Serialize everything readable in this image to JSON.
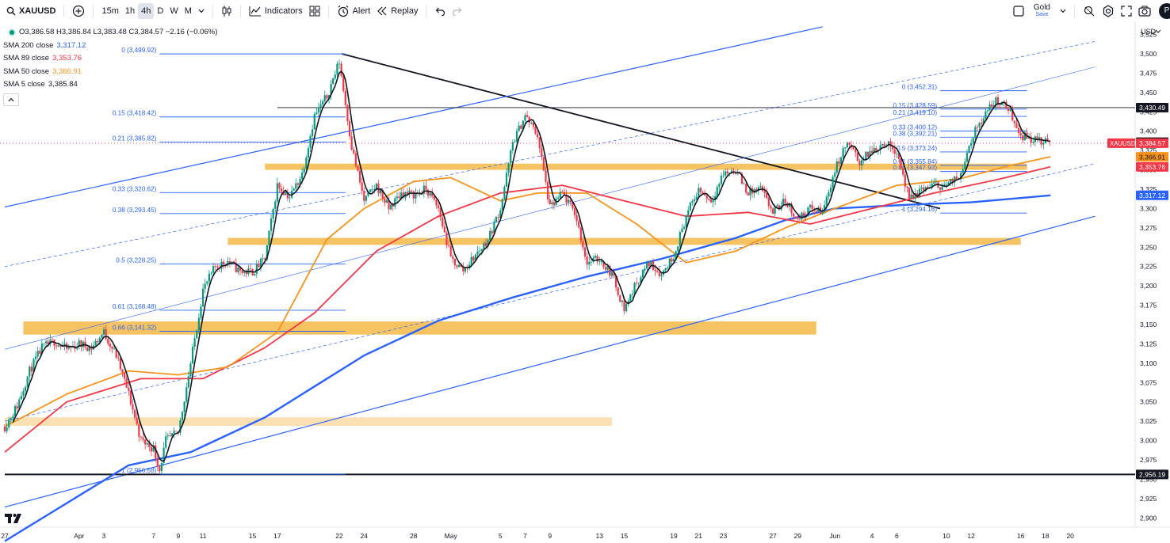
{
  "toolbar": {
    "symbol": "XAUUSD",
    "timeframes": [
      "15m",
      "1h",
      "4h",
      "D",
      "W",
      "M"
    ],
    "active_timeframe": "4h",
    "indicators_label": "Indicators",
    "alert_label": "Alert",
    "replay_label": "Replay",
    "layout_name": "Gold",
    "layout_status": "Save",
    "avatar_letter": "P",
    "icons": [
      "search-icon",
      "add-symbol-icon",
      "chevron-down-icon",
      "candles-icon",
      "indicators-icon",
      "templates-icon",
      "alert-icon",
      "replay-icon",
      "undo-icon",
      "redo-icon",
      "square-icon",
      "search-chart-icon",
      "settings-icon",
      "fullscreen-icon",
      "camera-icon"
    ]
  },
  "legend": {
    "ohlc": "O3,386.58 H3,386.84 L3,383.48 C3,384.57 −2.16 (−0.06%)",
    "sma": [
      {
        "label": "SMA 200 close",
        "value": "3,317.12",
        "color": "#2962ff"
      },
      {
        "label": "SMA 89 close",
        "value": "3,353.76",
        "color": "#f23645"
      },
      {
        "label": "SMA 50 close",
        "value": "3,366.91",
        "color": "#f7931a"
      },
      {
        "label": "SMA 5 close",
        "value": "3,385.84",
        "color": "#131722"
      }
    ]
  },
  "chart_data": {
    "type": "candlestick",
    "symbol": "XAUUSD",
    "interval": "4h",
    "currency": "USD",
    "ylim": [
      2888,
      3542
    ],
    "y_ticks": [
      2900,
      2925,
      2950,
      2975,
      3000,
      3025,
      3050,
      3075,
      3100,
      3125,
      3150,
      3175,
      3200,
      3225,
      3250,
      3275,
      3300,
      3325,
      3350,
      3375,
      3400,
      3425,
      3450,
      3475,
      3500,
      3525
    ],
    "x_ticks": [
      {
        "label": "27",
        "day": -5
      },
      {
        "label": "Apr",
        "day": 1
      },
      {
        "label": "3",
        "day": 3
      },
      {
        "label": "7",
        "day": 7
      },
      {
        "label": "9",
        "day": 9
      },
      {
        "label": "11",
        "day": 11
      },
      {
        "label": "15",
        "day": 15
      },
      {
        "label": "17",
        "day": 17
      },
      {
        "label": "22",
        "day": 22
      },
      {
        "label": "24",
        "day": 24
      },
      {
        "label": "28",
        "day": 28
      },
      {
        "label": "May",
        "day": 31
      },
      {
        "label": "5",
        "day": 35
      },
      {
        "label": "7",
        "day": 37
      },
      {
        "label": "9",
        "day": 39
      },
      {
        "label": "13",
        "day": 43
      },
      {
        "label": "15",
        "day": 45
      },
      {
        "label": "19",
        "day": 49
      },
      {
        "label": "21",
        "day": 51
      },
      {
        "label": "23",
        "day": 53
      },
      {
        "label": "27",
        "day": 57
      },
      {
        "label": "29",
        "day": 59
      },
      {
        "label": "Jun",
        "day": 62
      },
      {
        "label": "4",
        "day": 65
      },
      {
        "label": "6",
        "day": 67
      },
      {
        "label": "10",
        "day": 71
      },
      {
        "label": "12",
        "day": 73
      },
      {
        "label": "16",
        "day": 77
      },
      {
        "label": "18",
        "day": 79
      },
      {
        "label": "20",
        "day": 81
      }
    ],
    "price_path": [
      {
        "day": -5,
        "price": 3018
      },
      {
        "day": -4,
        "price": 3045
      },
      {
        "day": -3,
        "price": 3090
      },
      {
        "day": -2,
        "price": 3120
      },
      {
        "day": -1,
        "price": 3128
      },
      {
        "day": 0,
        "price": 3118
      },
      {
        "day": 1,
        "price": 3125
      },
      {
        "day": 2,
        "price": 3120
      },
      {
        "day": 3,
        "price": 3140
      },
      {
        "day": 4,
        "price": 3110
      },
      {
        "day": 5,
        "price": 3060
      },
      {
        "day": 6,
        "price": 3000
      },
      {
        "day": 7,
        "price": 2990
      },
      {
        "day": 7.5,
        "price": 2962
      },
      {
        "day": 8,
        "price": 3000
      },
      {
        "day": 9,
        "price": 3010
      },
      {
        "day": 10,
        "price": 3100
      },
      {
        "day": 11,
        "price": 3195
      },
      {
        "day": 12,
        "price": 3225
      },
      {
        "day": 13,
        "price": 3232
      },
      {
        "day": 14,
        "price": 3218
      },
      {
        "day": 15,
        "price": 3218
      },
      {
        "day": 16,
        "price": 3235
      },
      {
        "day": 17,
        "price": 3330
      },
      {
        "day": 18,
        "price": 3315
      },
      {
        "day": 19,
        "price": 3345
      },
      {
        "day": 20,
        "price": 3420
      },
      {
        "day": 21,
        "price": 3445
      },
      {
        "day": 22,
        "price": 3490
      },
      {
        "day": 23,
        "price": 3380
      },
      {
        "day": 24,
        "price": 3310
      },
      {
        "day": 25,
        "price": 3330
      },
      {
        "day": 26,
        "price": 3300
      },
      {
        "day": 27,
        "price": 3320
      },
      {
        "day": 28,
        "price": 3318
      },
      {
        "day": 29,
        "price": 3325
      },
      {
        "day": 30,
        "price": 3300
      },
      {
        "day": 31,
        "price": 3235
      },
      {
        "day": 32,
        "price": 3220
      },
      {
        "day": 33,
        "price": 3240
      },
      {
        "day": 34,
        "price": 3260
      },
      {
        "day": 35,
        "price": 3300
      },
      {
        "day": 36,
        "price": 3385
      },
      {
        "day": 37,
        "price": 3420
      },
      {
        "day": 38,
        "price": 3395
      },
      {
        "day": 39,
        "price": 3300
      },
      {
        "day": 40,
        "price": 3320
      },
      {
        "day": 41,
        "price": 3295
      },
      {
        "day": 42,
        "price": 3230
      },
      {
        "day": 43,
        "price": 3235
      },
      {
        "day": 44,
        "price": 3215
      },
      {
        "day": 45,
        "price": 3170
      },
      {
        "day": 46,
        "price": 3205
      },
      {
        "day": 47,
        "price": 3230
      },
      {
        "day": 48,
        "price": 3215
      },
      {
        "day": 49,
        "price": 3240
      },
      {
        "day": 50,
        "price": 3290
      },
      {
        "day": 51,
        "price": 3325
      },
      {
        "day": 52,
        "price": 3310
      },
      {
        "day": 53,
        "price": 3345
      },
      {
        "day": 54,
        "price": 3350
      },
      {
        "day": 55,
        "price": 3320
      },
      {
        "day": 56,
        "price": 3325
      },
      {
        "day": 57,
        "price": 3295
      },
      {
        "day": 58,
        "price": 3310
      },
      {
        "day": 59,
        "price": 3285
      },
      {
        "day": 60,
        "price": 3300
      },
      {
        "day": 61,
        "price": 3295
      },
      {
        "day": 62,
        "price": 3350
      },
      {
        "day": 63,
        "price": 3385
      },
      {
        "day": 64,
        "price": 3360
      },
      {
        "day": 65,
        "price": 3375
      },
      {
        "day": 66,
        "price": 3385
      },
      {
        "day": 67,
        "price": 3375
      },
      {
        "day": 68,
        "price": 3310
      },
      {
        "day": 69,
        "price": 3325
      },
      {
        "day": 70,
        "price": 3330
      },
      {
        "day": 71,
        "price": 3330
      },
      {
        "day": 72,
        "price": 3340
      },
      {
        "day": 73,
        "price": 3390
      },
      {
        "day": 74,
        "price": 3420
      },
      {
        "day": 75,
        "price": 3440
      },
      {
        "day": 76,
        "price": 3430
      },
      {
        "day": 77,
        "price": 3395
      },
      {
        "day": 78,
        "price": 3390
      },
      {
        "day": 79,
        "price": 3385
      },
      {
        "day": 79.4,
        "price": 3385
      }
    ],
    "sma": [
      {
        "name": "SMA 200 close",
        "color": "#2962ff",
        "width": 2.4,
        "points": [
          {
            "day": -5,
            "price": 2870
          },
          {
            "day": 5,
            "price": 2968
          },
          {
            "day": 10,
            "price": 2985
          },
          {
            "day": 16,
            "price": 3030
          },
          {
            "day": 20,
            "price": 3070
          },
          {
            "day": 24,
            "price": 3110
          },
          {
            "day": 30,
            "price": 3155
          },
          {
            "day": 36,
            "price": 3185
          },
          {
            "day": 42,
            "price": 3212
          },
          {
            "day": 48,
            "price": 3235
          },
          {
            "day": 54,
            "price": 3262
          },
          {
            "day": 58,
            "price": 3285
          },
          {
            "day": 62,
            "price": 3300
          },
          {
            "day": 68,
            "price": 3305
          },
          {
            "day": 73,
            "price": 3308
          },
          {
            "day": 79.4,
            "price": 3317
          }
        ]
      },
      {
        "name": "SMA 89 close",
        "color": "#f23645",
        "width": 1.8,
        "points": [
          {
            "day": -5,
            "price": 2985
          },
          {
            "day": 0,
            "price": 3050
          },
          {
            "day": 6,
            "price": 3080
          },
          {
            "day": 11,
            "price": 3080
          },
          {
            "day": 16,
            "price": 3120
          },
          {
            "day": 20,
            "price": 3165
          },
          {
            "day": 25,
            "price": 3245
          },
          {
            "day": 30,
            "price": 3290
          },
          {
            "day": 35,
            "price": 3320
          },
          {
            "day": 40,
            "price": 3330
          },
          {
            "day": 45,
            "price": 3310
          },
          {
            "day": 50,
            "price": 3290
          },
          {
            "day": 55,
            "price": 3295
          },
          {
            "day": 60,
            "price": 3280
          },
          {
            "day": 65,
            "price": 3300
          },
          {
            "day": 70,
            "price": 3320
          },
          {
            "day": 75,
            "price": 3337
          },
          {
            "day": 79.4,
            "price": 3354
          }
        ]
      },
      {
        "name": "SMA 50 close",
        "color": "#f7931a",
        "width": 1.8,
        "points": [
          {
            "day": -5,
            "price": 3018
          },
          {
            "day": 0,
            "price": 3060
          },
          {
            "day": 5,
            "price": 3090
          },
          {
            "day": 9,
            "price": 3085
          },
          {
            "day": 13,
            "price": 3095
          },
          {
            "day": 17,
            "price": 3140
          },
          {
            "day": 21,
            "price": 3260
          },
          {
            "day": 24,
            "price": 3300
          },
          {
            "day": 28,
            "price": 3335
          },
          {
            "day": 31,
            "price": 3340
          },
          {
            "day": 35,
            "price": 3310
          },
          {
            "day": 38,
            "price": 3320
          },
          {
            "day": 42,
            "price": 3320
          },
          {
            "day": 46,
            "price": 3280
          },
          {
            "day": 50,
            "price": 3230
          },
          {
            "day": 54,
            "price": 3245
          },
          {
            "day": 58,
            "price": 3275
          },
          {
            "day": 62,
            "price": 3300
          },
          {
            "day": 67,
            "price": 3330
          },
          {
            "day": 72,
            "price": 3338
          },
          {
            "day": 76,
            "price": 3355
          },
          {
            "day": 79.4,
            "price": 3367
          }
        ]
      }
    ],
    "fib_left": {
      "start_day": 7.5,
      "end_day": 22.5,
      "levels": [
        {
          "ratio": "0",
          "price": 3499.92,
          "label": "0 (3,499.92)"
        },
        {
          "ratio": "0.15",
          "price": 3418.42,
          "label": "0.15 (3,418.42)"
        },
        {
          "ratio": "0.21",
          "price": 3385.82,
          "label": "0.21 (3,385.82)"
        },
        {
          "ratio": "0.33",
          "price": 3320.62,
          "label": "0.33 (3,320.62)"
        },
        {
          "ratio": "0.38",
          "price": 3293.45,
          "label": "0.38 (3,293.45)"
        },
        {
          "ratio": "0.5",
          "price": 3228.25,
          "label": "0.5 (3,228.25)"
        },
        {
          "ratio": "0.61",
          "price": 3168.48,
          "label": "0.61 (3,168.48)"
        },
        {
          "ratio": "0.66",
          "price": 3141.32,
          "label": "0.66 (3,141.32)"
        },
        {
          "ratio": "1",
          "price": 2956.58,
          "label": "1 (2,956.58)"
        }
      ]
    },
    "fib_right": {
      "start_day": 70.5,
      "end_day": 77.5,
      "levels": [
        {
          "ratio": "0",
          "price": 3452.31,
          "label": "0 (3,452.31)"
        },
        {
          "ratio": "0.15",
          "price": 3428.59,
          "label": "0.15 (3,428.59)"
        },
        {
          "ratio": "0.21",
          "price": 3419.1,
          "label": "0.21 (3,419.10)"
        },
        {
          "ratio": "0.33",
          "price": 3400.12,
          "label": "0.33 (3,400.12)"
        },
        {
          "ratio": "0.38",
          "price": 3392.21,
          "label": "0.38 (3,392.21)"
        },
        {
          "ratio": "0.5",
          "price": 3373.24,
          "label": "0.5 (3,373.24)"
        },
        {
          "ratio": "0.61",
          "price": 3355.84,
          "label": "0.61 (3,355.84)"
        },
        {
          "ratio": "0.66",
          "price": 3347.93,
          "label": "0.66 (3,347.93)"
        },
        {
          "ratio": "1",
          "price": 3294.16,
          "label": "1 (3,294.16)"
        }
      ]
    },
    "zones": [
      {
        "name": "zone-3350",
        "from_day": 16,
        "to_day": 77.5,
        "top": 3358,
        "bottom": 3350,
        "color": "#f5b948"
      },
      {
        "name": "zone-3255",
        "from_day": 13,
        "to_day": 77,
        "top": 3262,
        "bottom": 3253,
        "color": "#f5b948"
      },
      {
        "name": "zone-3145",
        "from_day": -3.5,
        "to_day": 60.5,
        "top": 3154,
        "bottom": 3137,
        "color": "#f5b948"
      },
      {
        "name": "zone-3015",
        "from_day": -5,
        "to_day": 44,
        "top": 3030,
        "bottom": 3019,
        "color": "#f9dba5"
      }
    ],
    "trendlines": [
      {
        "name": "triangle-downtrend",
        "from": {
          "day": 22.2,
          "price": 3500
        },
        "to": {
          "day": 70.5,
          "price": 3300
        },
        "color": "#131722",
        "width": 1.8,
        "dash": false
      },
      {
        "name": "channel-upper",
        "from": {
          "day": -5,
          "price": 3302
        },
        "to": {
          "day": 61,
          "price": 3535
        },
        "color": "#2962ff",
        "width": 1.2,
        "dash": false
      },
      {
        "name": "channel-lower",
        "from": {
          "day": -5,
          "price": 2914
        },
        "to": {
          "day": 83,
          "price": 3290
        },
        "color": "#2962ff",
        "width": 1.2,
        "dash": false
      },
      {
        "name": "channel-mid",
        "from": {
          "day": -5,
          "price": 3118
        },
        "to": {
          "day": 83,
          "price": 3483
        },
        "color": "#2962ff",
        "width": 0.6,
        "dash": false
      },
      {
        "name": "channel-dashed-upper",
        "from": {
          "day": -5,
          "price": 3225
        },
        "to": {
          "day": 83,
          "price": 3516
        },
        "color": "#2962ff",
        "width": 0.7,
        "dash": true
      },
      {
        "name": "channel-dashed-lower",
        "from": {
          "day": -5,
          "price": 3025
        },
        "to": {
          "day": 83,
          "price": 3358
        },
        "color": "#2962ff",
        "width": 0.7,
        "dash": true
      }
    ],
    "horizontal_lines": [
      {
        "name": "hline-3430",
        "price": 3430.49,
        "from_day": 17,
        "color": "#131722",
        "width": 0.8
      },
      {
        "name": "hline-2956",
        "price": 2956.19,
        "from_day": -5,
        "color": "#131722",
        "width": 2
      }
    ],
    "current_price_line": {
      "price": 3384.57,
      "color": "#f23645"
    },
    "price_badges": [
      {
        "text": "3,430.49",
        "price": 3430.49,
        "bg": "#131722",
        "fg": "#ffffff"
      },
      {
        "text": "3,385.84",
        "price": 3385.84,
        "bg": "#131722",
        "fg": "#ffffff"
      },
      {
        "text": "3,384.57",
        "price": 3384.57,
        "bg": "#f23645",
        "fg": "#ffffff"
      },
      {
        "text": "3,366.91",
        "price": 3366.91,
        "bg": "#f7931a",
        "fg": "#131722"
      },
      {
        "text": "3,353.76",
        "price": 3353.76,
        "bg": "#f23645",
        "fg": "#ffffff"
      },
      {
        "text": "3,317.12",
        "price": 3317.12,
        "bg": "#2962ff",
        "fg": "#ffffff"
      },
      {
        "text": "2,956.19",
        "price": 2956.19,
        "bg": "#131722",
        "fg": "#ffffff"
      }
    ],
    "symbol_badge": {
      "text": "XAUUSD",
      "price": 3384.57,
      "bg": "#f23645",
      "fg": "#ffffff"
    },
    "candle_up_color": "#089981",
    "candle_down_color": "#f23645"
  }
}
